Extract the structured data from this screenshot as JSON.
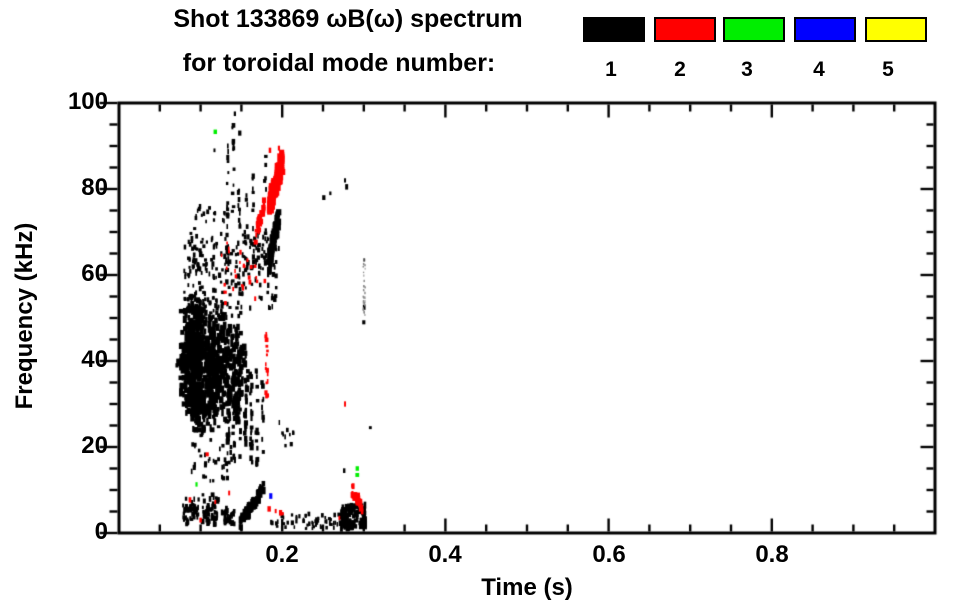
{
  "chart_data": {
    "type": "scatter",
    "title": "Shot 133869 ωB(ω) spectrum",
    "subtitle": "for toroidal mode number:",
    "xlabel": "Time (s)",
    "ylabel": "Frequency (kHz)",
    "xlim": [
      0,
      1.0
    ],
    "ylim": [
      0,
      100
    ],
    "x_major_ticks": [
      0.2,
      0.4,
      0.6,
      0.8
    ],
    "x_minor_step": 0.05,
    "y_major_ticks": [
      0,
      20,
      40,
      60,
      80,
      100
    ],
    "y_minor_step": 5,
    "x_tick_labels": [
      "0.2",
      "0.4",
      "0.6",
      "0.8"
    ],
    "y_tick_labels": [
      "0",
      "20",
      "40",
      "60",
      "80",
      "100"
    ],
    "grid": false,
    "legend_position": "top-right",
    "legend_title": "toroidal mode number",
    "series": [
      {
        "name": "1",
        "color": "#000000",
        "features": [
          {
            "kind": "line",
            "t": [
              0.071,
              0.079
            ],
            "f": [
              39.5,
              40.5
            ],
            "spread": 0.6,
            "n": 14,
            "size": 2
          },
          {
            "kind": "blob",
            "t": [
              0.076,
              0.102
            ],
            "f": [
              30,
              52
            ],
            "n": 290,
            "size": 3.4
          },
          {
            "kind": "blob",
            "t": [
              0.082,
              0.118
            ],
            "f": [
              24,
              33
            ],
            "n": 90,
            "size": 3
          },
          {
            "kind": "blob",
            "t": [
              0.096,
              0.132
            ],
            "f": [
              28,
              50
            ],
            "n": 270,
            "size": 3.4
          },
          {
            "kind": "cluster",
            "t": [
              0.085,
              0.107
            ],
            "f": [
              49,
              55
            ],
            "n": 40,
            "size": 2.6
          },
          {
            "kind": "blob",
            "t": [
              0.126,
              0.158
            ],
            "f": [
              26,
              48
            ],
            "n": 150,
            "size": 3
          },
          {
            "kind": "vstreak",
            "t": 0.134,
            "f": [
              20,
              48
            ],
            "n": 22,
            "size": 2.6
          },
          {
            "kind": "vstreak",
            "t": 0.141,
            "f": [
              16,
              46
            ],
            "n": 22,
            "size": 2.6
          },
          {
            "kind": "vstreak",
            "t": 0.148,
            "f": [
              14,
              44
            ],
            "n": 20,
            "size": 2.6
          },
          {
            "kind": "vstreak",
            "t": 0.155,
            "f": [
              15,
              42
            ],
            "n": 18,
            "size": 2.6
          },
          {
            "kind": "vstreak",
            "t": 0.162,
            "f": [
              13,
              40
            ],
            "n": 18,
            "size": 2.6
          },
          {
            "kind": "vstreak",
            "t": 0.169,
            "f": [
              16,
              38
            ],
            "n": 14,
            "size": 2.4
          },
          {
            "kind": "vstreak",
            "t": 0.176,
            "f": [
              18,
              36
            ],
            "n": 10,
            "size": 2.4
          },
          {
            "kind": "cluster",
            "t": [
              0.088,
              0.138
            ],
            "f": [
              12,
              28
            ],
            "n": 55,
            "size": 2.2
          },
          {
            "kind": "cluster",
            "t": [
              0.08,
              0.152
            ],
            "f": [
              50,
              68
            ],
            "n": 170,
            "size": 2.2
          },
          {
            "kind": "cluster",
            "t": [
              0.15,
              0.196
            ],
            "f": [
              52,
              70
            ],
            "n": 80,
            "size": 2.2
          },
          {
            "kind": "cluster",
            "t": [
              0.088,
              0.135
            ],
            "f": [
              68,
              76
            ],
            "n": 28,
            "size": 2
          },
          {
            "kind": "vstreak",
            "t": 0.133,
            "f": [
              70,
              92
            ],
            "n": 12,
            "size": 2.2
          },
          {
            "kind": "vstreak",
            "t": 0.14,
            "f": [
              72,
              97
            ],
            "n": 13,
            "size": 2.2
          },
          {
            "kind": "vstreak",
            "t": 0.147,
            "f": [
              68,
              86
            ],
            "n": 9,
            "size": 2.2
          },
          {
            "kind": "vstreak",
            "t": 0.156,
            "f": [
              60,
              80
            ],
            "n": 10,
            "size": 2.2
          },
          {
            "kind": "vstreak",
            "t": 0.164,
            "f": [
              58,
              83
            ],
            "n": 10,
            "size": 2.2
          },
          {
            "kind": "vstreak",
            "t": 0.171,
            "f": [
              60,
              78
            ],
            "n": 8,
            "size": 2.2
          },
          {
            "kind": "vstreak",
            "t": 0.179,
            "f": [
              62,
              88
            ],
            "n": 11,
            "size": 2.2
          },
          {
            "kind": "line",
            "t": [
              0.183,
              0.196
            ],
            "f": [
              62,
              74
            ],
            "spread": 2.4,
            "n": 95,
            "size": 3.4
          },
          {
            "kind": "cluster",
            "t": [
              0.196,
              0.215
            ],
            "f": [
              20,
              26
            ],
            "n": 10,
            "size": 2
          },
          {
            "kind": "points",
            "pts": [
              [
                0.142,
                97.5
              ],
              [
                0.148,
                93
              ],
              [
                0.117,
                89
              ],
              [
                0.251,
                78
              ],
              [
                0.259,
                79
              ],
              [
                0.277,
                82
              ],
              [
                0.279,
                80.5
              ],
              [
                0.308,
                24.5
              ],
              [
                0.276,
                14.5
              ],
              [
                0.3,
                49
              ],
              [
                0.3005,
                63.5
              ],
              [
                0.3005,
                52.5
              ]
            ],
            "size": 2.2
          },
          {
            "kind": "vstreak",
            "t": 0.3005,
            "f": [
              50,
              64
            ],
            "n": 30,
            "size": 1.1,
            "color": "#8a8a8a"
          },
          {
            "kind": "cluster",
            "t": [
              0.078,
              0.1
            ],
            "f": [
              2,
              8
            ],
            "n": 45,
            "size": 2.4
          },
          {
            "kind": "cluster",
            "t": [
              0.102,
              0.122
            ],
            "f": [
              2,
              9
            ],
            "n": 45,
            "size": 2.4
          },
          {
            "kind": "cluster",
            "t": [
              0.125,
              0.142
            ],
            "f": [
              2,
              6
            ],
            "n": 30,
            "size": 2.4
          },
          {
            "kind": "line",
            "t": [
              0.148,
              0.178
            ],
            "f": [
              2,
              11
            ],
            "spread": 1.4,
            "n": 80,
            "size": 3
          },
          {
            "kind": "cluster",
            "t": [
              0.185,
              0.27
            ],
            "f": [
              1,
              4.5
            ],
            "n": 55,
            "size": 2
          },
          {
            "kind": "line",
            "t": [
              0.272,
              0.302
            ],
            "f": [
              3.5,
              4
            ],
            "spread": 2.5,
            "n": 100,
            "size": 3
          }
        ]
      },
      {
        "name": "2",
        "color": "#ff0000",
        "features": [
          {
            "kind": "line",
            "t": [
              0.184,
              0.2
            ],
            "f": [
              76,
              86.5
            ],
            "spread": 2.5,
            "n": 140,
            "size": 4
          },
          {
            "kind": "points",
            "pts": [
              [
                0.196,
                89.5
              ],
              [
                0.185,
                89
              ]
            ],
            "size": 2.2
          },
          {
            "kind": "line",
            "t": [
              0.167,
              0.178
            ],
            "f": [
              69,
              76
            ],
            "spread": 1.8,
            "n": 32,
            "size": 2.6
          },
          {
            "kind": "cluster",
            "t": [
              0.125,
              0.182
            ],
            "f": [
              53,
              68
            ],
            "n": 24,
            "size": 2
          },
          {
            "kind": "vstreak",
            "t": 0.181,
            "f": [
              31,
              47
            ],
            "n": 20,
            "size": 2
          },
          {
            "kind": "points",
            "pts": [
              [
                0.108,
                18.3
              ],
              [
                0.277,
                30
              ],
              [
                0.152,
                57
              ],
              [
                0.13,
                56
              ]
            ],
            "size": 2.2
          },
          {
            "kind": "line",
            "t": [
              0.283,
              0.298
            ],
            "f": [
              11,
              6
            ],
            "spread": 1.2,
            "n": 30,
            "size": 2.8
          },
          {
            "kind": "points",
            "pts": [
              [
                0.087,
                7.7
              ],
              [
                0.118,
                7.2
              ],
              [
                0.135,
                9.3
              ],
              [
                0.1,
                3
              ],
              [
                0.184,
                5.6
              ],
              [
                0.192,
                5.1
              ],
              [
                0.198,
                4.7
              ],
              [
                0.2,
                4.5
              ],
              [
                0.27,
                3.5
              ]
            ],
            "size": 2.4
          }
        ]
      },
      {
        "name": "3",
        "color": "#00ee00",
        "features": [
          {
            "kind": "points",
            "pts": [
              [
                0.118,
                93.3
              ],
              [
                0.095,
                11.3
              ],
              [
                0.292,
                15
              ],
              [
                0.292,
                13.5
              ]
            ],
            "size": 2.4
          }
        ]
      },
      {
        "name": "4",
        "color": "#0000ff",
        "features": [
          {
            "kind": "points",
            "pts": [
              [
                0.186,
                8.6
              ]
            ],
            "size": 2.4
          }
        ]
      },
      {
        "name": "5",
        "color": "#ffff00",
        "features": []
      }
    ]
  }
}
